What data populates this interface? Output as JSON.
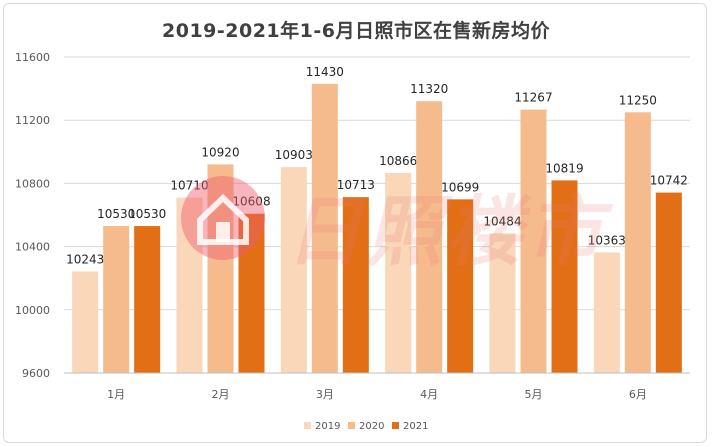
{
  "chart_data": {
    "type": "bar",
    "title": "2019-2021年1-6月日照市区在售新房均价",
    "categories": [
      "1月",
      "2月",
      "3月",
      "4月",
      "5月",
      "6月"
    ],
    "series": [
      {
        "name": "2019",
        "color": "#f9d7b8",
        "values": [
          10243,
          10710,
          10903,
          10866,
          10484,
          10363
        ]
      },
      {
        "name": "2020",
        "color": "#f6bb8c",
        "values": [
          10530,
          10920,
          11430,
          11320,
          11267,
          11250
        ]
      },
      {
        "name": "2021",
        "color": "#e26f16",
        "values": [
          10530,
          10608,
          10713,
          10699,
          10819,
          10742
        ]
      }
    ],
    "ylim": [
      9600,
      11600
    ],
    "yticks": [
      9600,
      10000,
      10400,
      10800,
      11200,
      11600
    ],
    "grid": true,
    "legend_position": "bottom-center",
    "xlabel": "",
    "ylabel": ""
  },
  "watermark": {
    "text": "日照楼市",
    "icon": "house-logo-icon"
  }
}
